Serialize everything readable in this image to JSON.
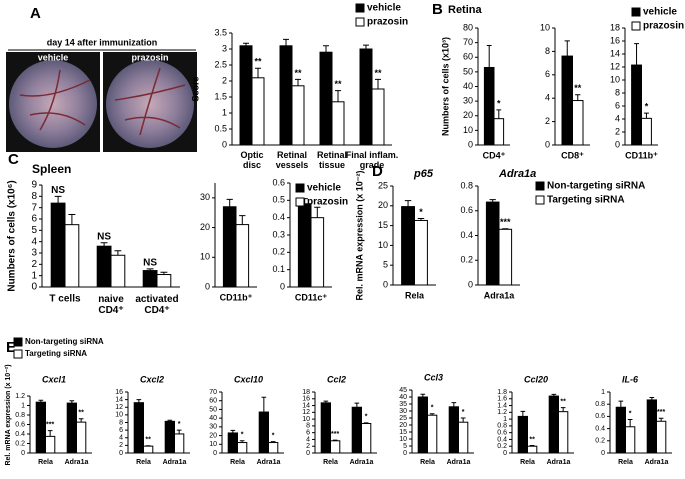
{
  "panel_labels": [
    "A",
    "B",
    "C",
    "D",
    "E"
  ],
  "photo": {
    "caption": "day 14 after immunization",
    "labels": [
      "vehicle",
      "prazosin"
    ]
  },
  "chart_data": [
    {
      "type": "bar",
      "ylabel": "Score",
      "categories": [
        "Optic\ndisc",
        "Retinal\nvessels",
        "Retinal\ntissue",
        "Final inflam.\ngrade"
      ],
      "series": [
        {
          "name": "vehicle",
          "color": "#000000",
          "values": [
            3.1,
            3.1,
            2.9,
            3.0
          ],
          "errors": [
            0.08,
            0.2,
            0.2,
            0.12
          ]
        },
        {
          "name": "prazosin",
          "color": "#ffffff",
          "values": [
            2.1,
            1.85,
            1.35,
            1.75
          ],
          "errors": [
            0.3,
            0.2,
            0.35,
            0.3
          ],
          "annotations": [
            "**",
            "**",
            "**",
            "**"
          ]
        }
      ],
      "ylim": [
        0,
        3.5
      ],
      "yticks": [
        0,
        0.5,
        1,
        1.5,
        2,
        2.5,
        3,
        3.5
      ]
    },
    {
      "type": "bar",
      "title": "Retina",
      "ylabel": "Numbers of cells (x10³)",
      "categories": [
        "CD4⁺"
      ],
      "series": [
        {
          "color": "#000000",
          "values": [
            53
          ],
          "errors": [
            15
          ]
        },
        {
          "color": "#ffffff",
          "values": [
            18
          ],
          "errors": [
            6
          ],
          "annotations": [
            "*"
          ]
        }
      ],
      "ylim": [
        0,
        80
      ],
      "yticks": [
        0,
        10,
        20,
        30,
        40,
        50,
        60,
        70,
        80
      ]
    },
    {
      "type": "bar",
      "categories": [
        "CD8⁺"
      ],
      "series": [
        {
          "color": "#000000",
          "values": [
            7.6
          ],
          "errors": [
            1.3
          ]
        },
        {
          "color": "#ffffff",
          "values": [
            3.8
          ],
          "errors": [
            0.5
          ],
          "annotations": [
            "**"
          ]
        }
      ],
      "ylim": [
        0,
        10
      ],
      "yticks": [
        0,
        2,
        4,
        6,
        8,
        10
      ]
    },
    {
      "type": "bar",
      "categories": [
        "CD11b⁺"
      ],
      "series": [
        {
          "name": "vehicle",
          "color": "#000000",
          "values": [
            12.3
          ],
          "errors": [
            3.3
          ]
        },
        {
          "name": "prazosin",
          "color": "#ffffff",
          "values": [
            4.1
          ],
          "errors": [
            0.8
          ],
          "annotations": [
            "*"
          ]
        }
      ],
      "ylim": [
        0,
        18
      ],
      "yticks": [
        0,
        2,
        4,
        6,
        8,
        10,
        12,
        14,
        16,
        18
      ]
    },
    {
      "type": "bar",
      "title": "Spleen",
      "ylabel": "Numbers of cells (x10⁶)",
      "categories": [
        "T cells",
        "naive\nCD4⁺",
        "activated\nCD4⁺"
      ],
      "series": [
        {
          "color": "#000000",
          "values": [
            7.4,
            3.6,
            1.45
          ],
          "errors": [
            0.6,
            0.3,
            0.15
          ],
          "annotations": [
            "NS",
            "NS",
            "NS"
          ]
        },
        {
          "color": "#ffffff",
          "values": [
            5.5,
            2.8,
            1.1
          ],
          "errors": [
            0.9,
            0.4,
            0.2
          ]
        }
      ],
      "ylim": [
        0,
        9
      ],
      "yticks": [
        0,
        1,
        2,
        3,
        4,
        5,
        6,
        7,
        8,
        9
      ]
    },
    {
      "type": "bar",
      "categories": [
        "CD11b⁺"
      ],
      "series": [
        {
          "color": "#000000",
          "values": [
            27
          ],
          "errors": [
            2.5
          ]
        },
        {
          "color": "#ffffff",
          "values": [
            21
          ],
          "errors": [
            3
          ]
        }
      ],
      "ylim": [
        0,
        35
      ],
      "yticks": [
        0,
        10,
        20,
        30
      ]
    },
    {
      "type": "bar",
      "categories": [
        "CD11c⁺"
      ],
      "series": [
        {
          "name": "vehicle",
          "color": "#000000",
          "values": [
            0.48
          ],
          "errors": [
            0.03
          ]
        },
        {
          "name": "prazosin",
          "color": "#ffffff",
          "values": [
            0.4
          ],
          "errors": [
            0.06
          ]
        }
      ],
      "ylim": [
        0,
        0.6
      ],
      "yticks": [
        0,
        0.1,
        0.2,
        0.3,
        0.4,
        0.5,
        0.6
      ]
    },
    {
      "type": "bar",
      "title": "p65",
      "ylabel": "Rel. mRNA expression (x 10⁻²)",
      "categories": [
        "Rela"
      ],
      "series": [
        {
          "color": "#000000",
          "values": [
            19.8
          ],
          "errors": [
            1.5
          ]
        },
        {
          "color": "#ffffff",
          "values": [
            16.3
          ],
          "errors": [
            0.5
          ],
          "annotations": [
            "*"
          ]
        }
      ],
      "ylim": [
        0,
        25
      ],
      "yticks": [
        0,
        5,
        10,
        15,
        20,
        25
      ]
    },
    {
      "type": "bar",
      "title": "Adra1a",
      "categories": [
        "Adra1a"
      ],
      "series": [
        {
          "name": "Non-targeting siRNA",
          "color": "#000000",
          "values": [
            0.67
          ],
          "errors": [
            0.02
          ]
        },
        {
          "name": "Targeting siRNA",
          "color": "#ffffff",
          "values": [
            0.45
          ],
          "errors": [
            0.005
          ],
          "annotations": [
            "***"
          ]
        }
      ],
      "ylim": [
        0,
        0.8
      ],
      "yticks": [
        0,
        0.2,
        0.4,
        0.6,
        0.8
      ]
    },
    {
      "type": "bar",
      "title": "Cxcl1",
      "ylabel": "Rel. mRNA expression (x 10⁻²)",
      "categories": [
        "Rela",
        "Adra1a"
      ],
      "series": [
        {
          "name": "Non-targeting siRNA",
          "color": "#000000",
          "values": [
            1.07,
            1.05
          ],
          "errors": [
            0.04,
            0.05
          ]
        },
        {
          "name": "Targeting siRNA",
          "color": "#ffffff",
          "values": [
            0.35,
            0.65
          ],
          "errors": [
            0.12,
            0.07
          ],
          "annotations": [
            "***",
            "**"
          ]
        }
      ],
      "ylim": [
        0,
        1.2
      ],
      "yticks": [
        0,
        0.2,
        0.4,
        0.6,
        0.8,
        1,
        1.2
      ]
    },
    {
      "type": "bar",
      "title": "Cxcl2",
      "categories": [
        "Rela",
        "Adra1a"
      ],
      "series": [
        {
          "color": "#000000",
          "values": [
            13.2,
            8.3
          ],
          "errors": [
            0.8,
            0.3
          ]
        },
        {
          "color": "#ffffff",
          "values": [
            1.8,
            5.0
          ],
          "errors": [
            0.1,
            1.0
          ],
          "annotations": [
            "**",
            "*"
          ]
        }
      ],
      "ylim": [
        0,
        16
      ],
      "yticks": [
        0,
        2,
        4,
        6,
        8,
        10,
        12,
        14,
        16
      ]
    },
    {
      "type": "bar",
      "title": "Cxcl10",
      "categories": [
        "Rela",
        "Adra1a"
      ],
      "series": [
        {
          "color": "#000000",
          "values": [
            23,
            47
          ],
          "errors": [
            3,
            17
          ]
        },
        {
          "color": "#ffffff",
          "values": [
            12,
            12
          ],
          "errors": [
            2,
            1
          ],
          "annotations": [
            "*",
            "*"
          ]
        }
      ],
      "ylim": [
        0,
        70
      ],
      "yticks": [
        0,
        10,
        20,
        30,
        40,
        50,
        60,
        70
      ]
    },
    {
      "type": "bar",
      "title": "Ccl2",
      "categories": [
        "Rela",
        "Adra1a"
      ],
      "series": [
        {
          "color": "#000000",
          "values": [
            14.8,
            13.5
          ],
          "errors": [
            0.5,
            1.2
          ]
        },
        {
          "color": "#ffffff",
          "values": [
            3.6,
            8.7
          ],
          "errors": [
            0.2,
            0.2
          ],
          "annotations": [
            "***",
            "*"
          ]
        }
      ],
      "ylim": [
        0,
        18
      ],
      "yticks": [
        0,
        2,
        4,
        6,
        8,
        10,
        12,
        14,
        16,
        18
      ]
    },
    {
      "type": "bar",
      "title": "Ccl3",
      "categories": [
        "Rela",
        "Adra1a"
      ],
      "series": [
        {
          "color": "#000000",
          "values": [
            40,
            33
          ],
          "errors": [
            2,
            3
          ]
        },
        {
          "color": "#ffffff",
          "values": [
            27,
            22
          ],
          "errors": [
            1,
            3
          ],
          "annotations": [
            "*",
            "*"
          ]
        }
      ],
      "ylim": [
        0,
        45
      ],
      "yticks": [
        0,
        5,
        10,
        15,
        20,
        25,
        30,
        35,
        40,
        45
      ]
    },
    {
      "type": "bar",
      "title": "Ccl20",
      "categories": [
        "Rela",
        "Adra1a"
      ],
      "series": [
        {
          "color": "#000000",
          "values": [
            1.08,
            1.68
          ],
          "errors": [
            0.15,
            0.05
          ]
        },
        {
          "color": "#ffffff",
          "values": [
            0.2,
            1.22
          ],
          "errors": [
            0.02,
            0.12
          ],
          "annotations": [
            "**",
            "**"
          ]
        }
      ],
      "ylim": [
        0,
        1.8
      ],
      "yticks": [
        0,
        0.2,
        0.4,
        0.6,
        0.8,
        1,
        1.2,
        1.4,
        1.6,
        1.8
      ]
    },
    {
      "type": "bar",
      "title": "IL-6",
      "categories": [
        "Rela",
        "Adra1a"
      ],
      "series": [
        {
          "color": "#000000",
          "values": [
            0.75,
            0.87
          ],
          "errors": [
            0.1,
            0.04
          ]
        },
        {
          "color": "#ffffff",
          "values": [
            0.43,
            0.52
          ],
          "errors": [
            0.12,
            0.05
          ],
          "annotations": [
            "*",
            "***"
          ]
        }
      ],
      "ylim": [
        0,
        1
      ],
      "yticks": [
        0,
        0.2,
        0.4,
        0.6,
        0.8,
        1
      ]
    }
  ]
}
